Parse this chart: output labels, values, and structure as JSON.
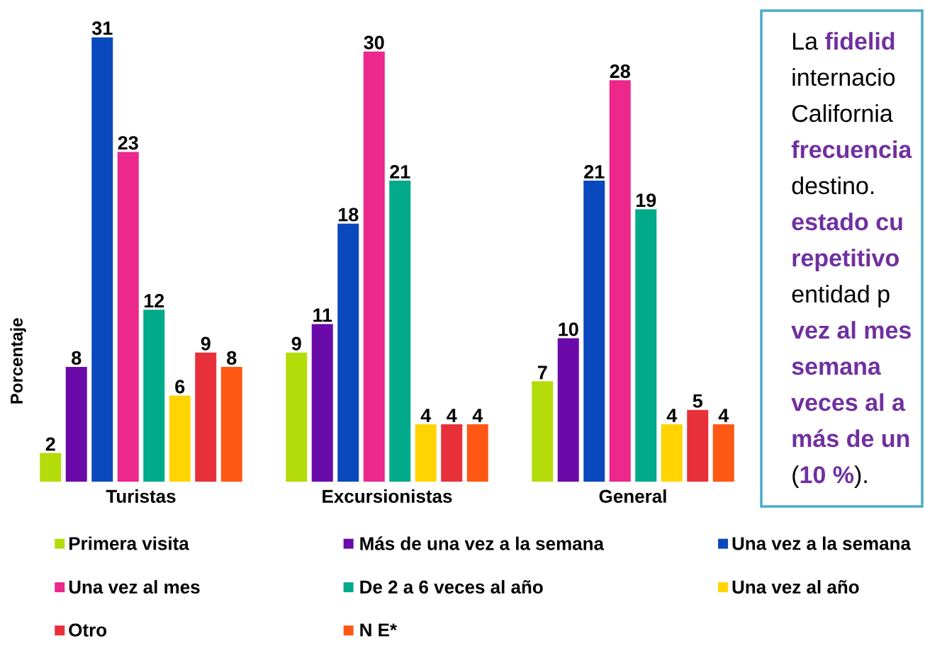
{
  "chart_data": [
    {
      "type": "bar",
      "ylabel": "Porcentaje",
      "categories": [
        "Turistas",
        "Excursionistas",
        "General"
      ],
      "series": [
        {
          "name": "Primera visita",
          "color": "#b4dc0a",
          "values": [
            2,
            9,
            7
          ]
        },
        {
          "name": "Más de una vez a la semana",
          "color": "#6a0aa8",
          "values": [
            8,
            11,
            10
          ]
        },
        {
          "name": "Una vez a la semana",
          "color": "#0a48be",
          "values": [
            31,
            18,
            21
          ]
        },
        {
          "name": "Una vez al mes",
          "color": "#ec288c",
          "values": [
            23,
            30,
            28
          ]
        },
        {
          "name": "De 2 a 6 veces al año",
          "color": "#00aa8a",
          "values": [
            12,
            21,
            19
          ]
        },
        {
          "name": "Una vez al año",
          "color": "#ffd400",
          "values": [
            6,
            4,
            4
          ]
        },
        {
          "name": "Otro",
          "color": "#e8303a",
          "values": [
            9,
            4,
            5
          ]
        },
        {
          "name": "N E*",
          "color": "#ff5814",
          "values": [
            8,
            4,
            4
          ]
        }
      ],
      "data_labels": true,
      "legend": "bottom"
    },
    {
      "type": "other",
      "annotations": [
        "La **fidelid**",
        "internacio",
        "California",
        "**frecuencia**",
        "destino.",
        "**estado cu**",
        "**repetitivo**",
        "entidad p",
        "**vez al mes**",
        "**semana**",
        "**veces al a**",
        "**más de un**",
        "(**10 %**)."
      ]
    }
  ]
}
